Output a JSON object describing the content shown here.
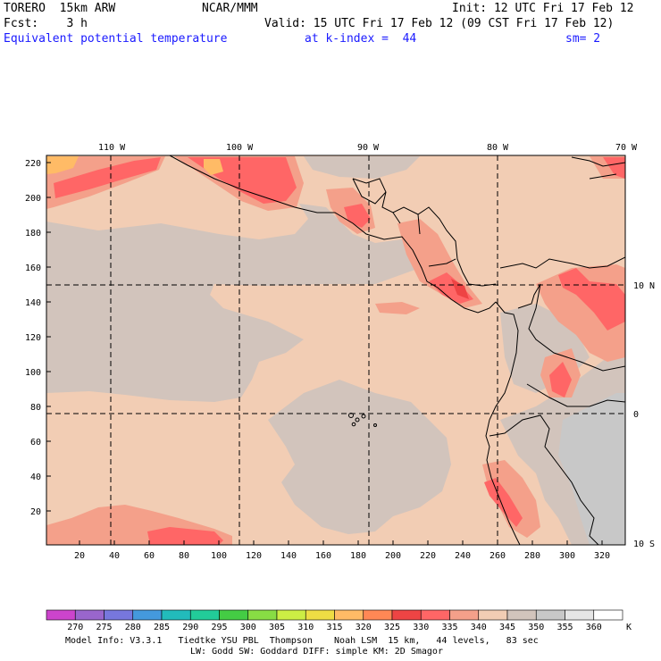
{
  "header": {
    "model": "TORERO  15km ARW",
    "org": "NCAR/MMM",
    "init": "Init: 12 UTC Fri 17 Feb 12",
    "fcst": "Fcst:    3 h",
    "valid": "Valid: 15 UTC Fri 17 Feb 12 (09 CST Fri 17 Feb 12)",
    "field": "Equivalent potential temperature",
    "level": "at k-index =  44",
    "smooth": "sm= 2"
  },
  "map": {
    "lon_labels": [
      "110 W",
      "100 W",
      "90 W",
      "80 W",
      "70 W"
    ],
    "lat_labels": [
      "10 N",
      "0",
      "10 S"
    ],
    "y_ticks": [
      "220",
      "200",
      "180",
      "160",
      "140",
      "120",
      "100",
      "80",
      "60",
      "40",
      "20"
    ],
    "x_ticks": [
      "20",
      "40",
      "60",
      "80",
      "100",
      "120",
      "140",
      "160",
      "180",
      "200",
      "220",
      "240",
      "260",
      "280",
      "300",
      "320"
    ]
  },
  "colorbar": {
    "labels": [
      "270",
      "275",
      "280",
      "285",
      "290",
      "295",
      "300",
      "305",
      "310",
      "315",
      "320",
      "325",
      "330",
      "335",
      "340",
      "345",
      "350",
      "355",
      "360"
    ],
    "unit": "K",
    "colors": [
      "#cc44cc",
      "#9966cc",
      "#7777dd",
      "#4499dd",
      "#22bbbb",
      "#22cc99",
      "#44cc44",
      "#88dd44",
      "#ccee44",
      "#eedd44",
      "#ffbb66",
      "#ff8855",
      "#ee4444",
      "#ff6666",
      "#f4a08a",
      "#f2cdb4",
      "#d2c4bc",
      "#c8c8c8",
      "#e6e6e6",
      "#ffffff"
    ]
  },
  "footer": {
    "line1": "Model Info: V3.3.1   Tiedtke YSU PBL  Thompson    Noah LSM  15 km,   44 levels,   83 sec",
    "line2": "LW: Godd SW: Goddard DIFF: simple KM: 2D Smagor"
  }
}
